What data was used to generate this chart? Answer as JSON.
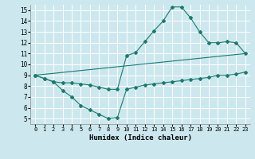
{
  "xlabel": "Humidex (Indice chaleur)",
  "xlim": [
    -0.5,
    23.5
  ],
  "ylim": [
    4.5,
    15.5
  ],
  "yticks": [
    5,
    6,
    7,
    8,
    9,
    10,
    11,
    12,
    13,
    14,
    15
  ],
  "xticks": [
    0,
    1,
    2,
    3,
    4,
    5,
    6,
    7,
    8,
    9,
    10,
    11,
    12,
    13,
    14,
    15,
    16,
    17,
    18,
    19,
    20,
    21,
    22,
    23
  ],
  "background_color": "#cce8ee",
  "grid_color": "#ffffff",
  "line_color": "#1a7a6e",
  "line1": {
    "x": [
      0,
      1,
      2,
      3,
      4,
      5,
      6,
      7,
      8,
      9,
      10,
      11,
      12,
      13,
      14,
      15,
      16,
      17,
      18,
      19,
      20,
      21,
      22,
      23
    ],
    "y": [
      9.0,
      8.7,
      8.4,
      8.3,
      8.3,
      8.2,
      8.1,
      7.9,
      7.7,
      7.7,
      10.8,
      11.1,
      12.1,
      13.1,
      14.0,
      15.3,
      15.3,
      14.3,
      13.0,
      12.0,
      12.0,
      12.1,
      12.0,
      11.0
    ]
  },
  "line2": {
    "x": [
      0,
      1,
      2,
      3,
      4,
      5,
      6,
      7,
      8,
      9,
      10,
      11,
      12,
      13,
      14,
      15,
      16,
      17,
      18,
      19,
      20,
      21,
      22,
      23
    ],
    "y": [
      9.0,
      8.7,
      8.4,
      7.6,
      7.0,
      6.2,
      5.8,
      5.4,
      5.0,
      5.1,
      7.7,
      7.9,
      8.1,
      8.2,
      8.3,
      8.4,
      8.5,
      8.6,
      8.7,
      8.8,
      9.0,
      9.0,
      9.1,
      9.3
    ]
  },
  "line3": {
    "x": [
      0,
      23
    ],
    "y": [
      9.0,
      11.0
    ]
  }
}
